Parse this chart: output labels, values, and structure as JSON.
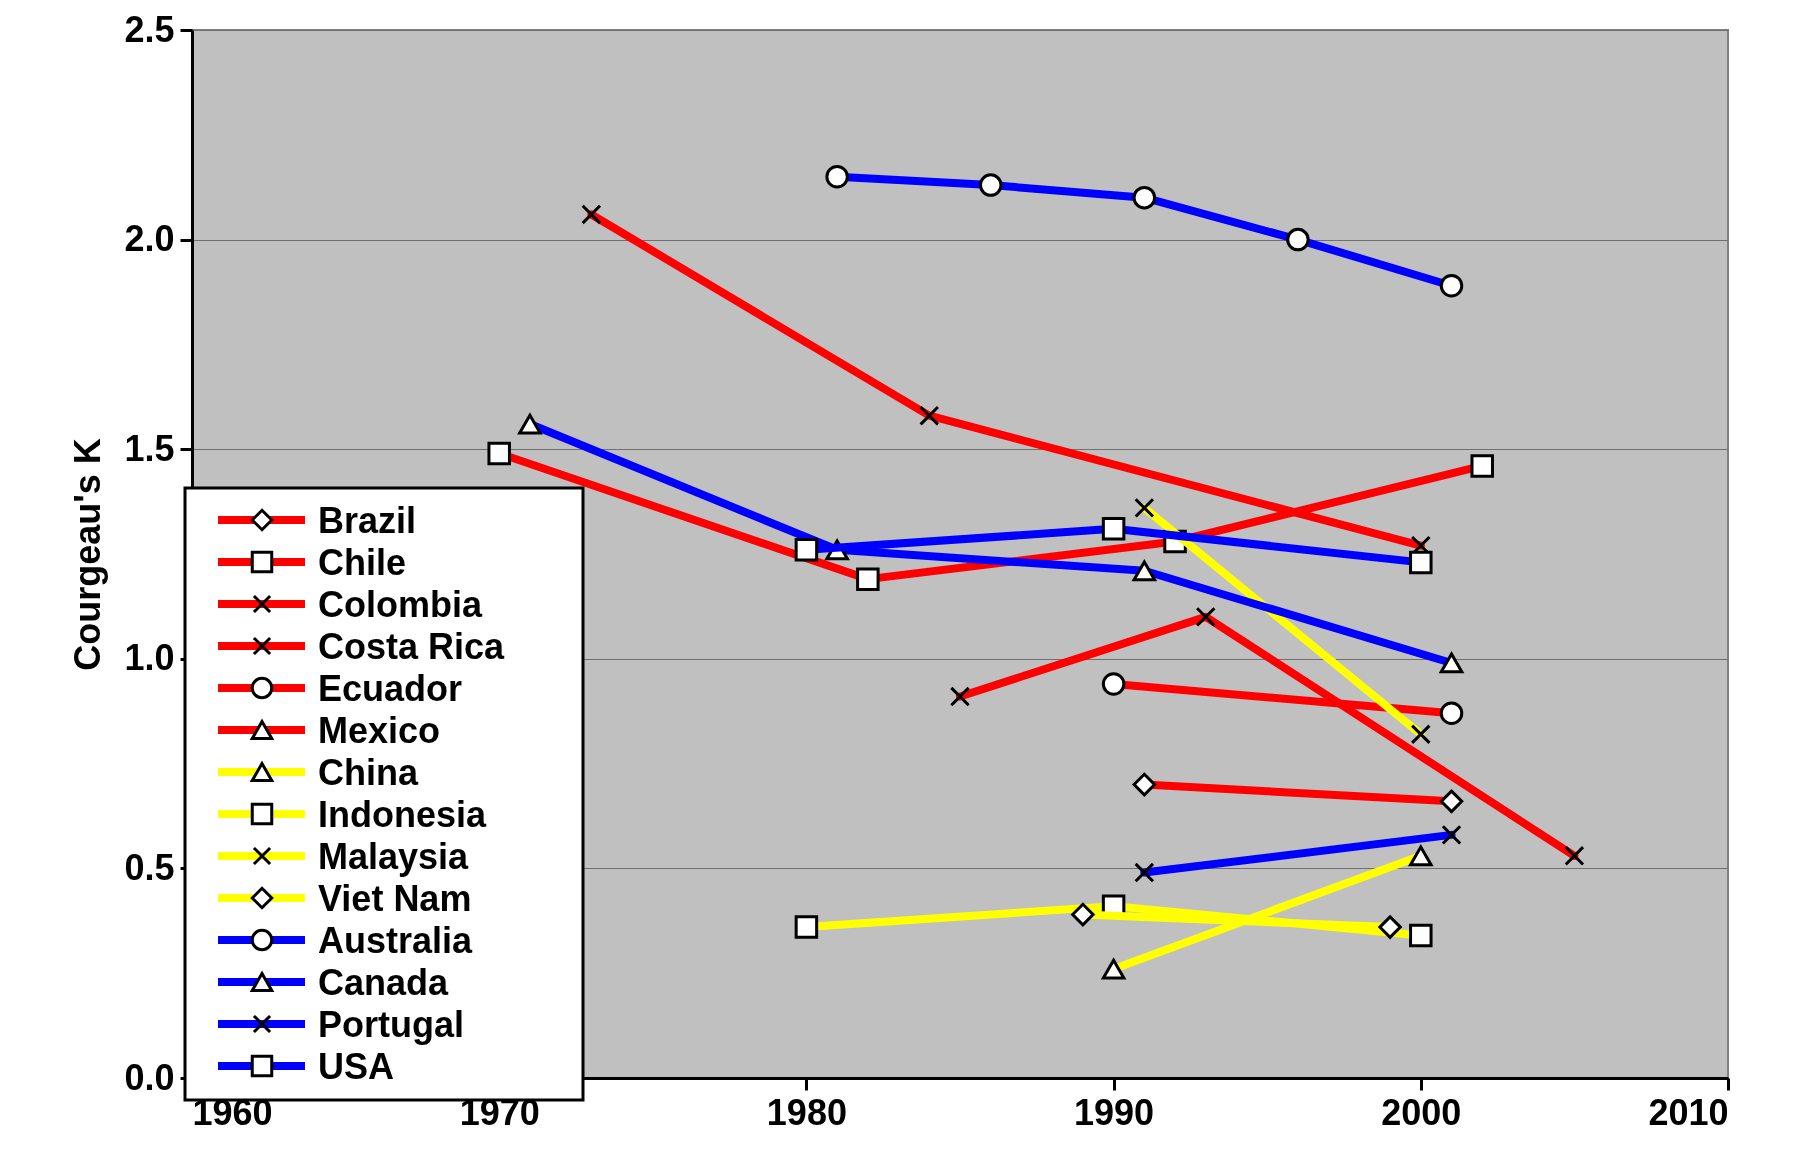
{
  "chart_data": {
    "type": "line",
    "ylabel": "Courgeau's K",
    "xlim": [
      1960,
      2010
    ],
    "ylim": [
      0,
      2.5
    ],
    "xticks": [
      1960,
      1970,
      1980,
      1990,
      2000,
      2010
    ],
    "yticks": [
      {
        "value": 0,
        "label": "0.0"
      },
      0.5,
      {
        "value": 1,
        "label": "1.0"
      },
      1.5,
      {
        "value": 2,
        "label": "2.0"
      },
      2.5
    ],
    "grid": "y",
    "legend": "bottom left",
    "line_style": "solid",
    "series": [
      {
        "name": "Brazil",
        "color": "#ff0000",
        "marker": "diamond",
        "x": [
          1991,
          2001
        ],
        "values": [
          0.7,
          0.66
        ]
      },
      {
        "name": "Chile",
        "color": "#ff0000",
        "marker": "square",
        "x": [
          1970,
          1982,
          1992,
          2002
        ],
        "values": [
          1.49,
          1.19,
          1.28,
          1.46
        ]
      },
      {
        "name": "Colombia",
        "color": "#ff0000",
        "marker": "cross",
        "x": [
          1985,
          1993,
          2005
        ],
        "values": [
          0.91,
          1.1,
          0.53
        ]
      },
      {
        "name": "Costa Rica",
        "color": "#ff0000",
        "marker": "cross",
        "x": [
          1973,
          1984,
          2000
        ],
        "values": [
          2.06,
          1.58,
          1.27
        ]
      },
      {
        "name": "Ecuador",
        "color": "#ff0000",
        "marker": "circle",
        "x": [
          1990,
          2001
        ],
        "values": [
          0.94,
          0.87
        ]
      },
      {
        "name": "Mexico",
        "color": "#ff0000",
        "marker": "triangle"
      },
      {
        "name": "China",
        "color": "#ffff00",
        "marker": "triangle",
        "x": [
          1990,
          2000
        ],
        "values": [
          0.26,
          0.53
        ]
      },
      {
        "name": "Indonesia",
        "color": "#ffff00",
        "marker": "square",
        "x": [
          1980,
          1990,
          2000
        ],
        "values": [
          0.36,
          0.41,
          0.34
        ]
      },
      {
        "name": "Malaysia",
        "color": "#ffff00",
        "marker": "cross",
        "x": [
          1991,
          2000
        ],
        "values": [
          1.36,
          0.82
        ]
      },
      {
        "name": "Viet Nam",
        "color": "#ffff00",
        "marker": "diamond",
        "x": [
          1989,
          1999
        ],
        "values": [
          0.39,
          0.36
        ]
      },
      {
        "name": "Australia",
        "color": "#0000ff",
        "marker": "circle",
        "x": [
          1981,
          1986,
          1991,
          1996,
          2001
        ],
        "values": [
          2.15,
          2.13,
          2.1,
          2.0,
          1.89
        ]
      },
      {
        "name": "Canada",
        "color": "#0000ff",
        "marker": "triangle",
        "x": [
          1971,
          1981,
          1991,
          2001
        ],
        "values": [
          1.56,
          1.26,
          1.21,
          0.99
        ]
      },
      {
        "name": "Portugal",
        "color": "#0000ff",
        "marker": "cross",
        "x": [
          1991,
          2001
        ],
        "values": [
          0.49,
          0.58
        ]
      },
      {
        "name": "USA",
        "color": "#0000ff",
        "marker": "square",
        "x": [
          1980,
          1990,
          2000
        ],
        "values": [
          1.26,
          1.31,
          1.23
        ]
      }
    ]
  }
}
